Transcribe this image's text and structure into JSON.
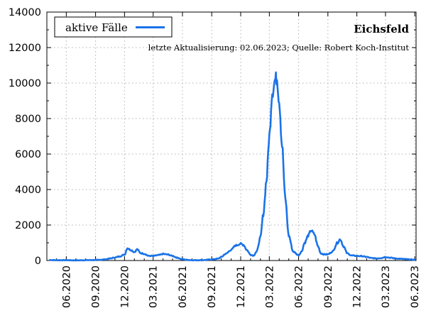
{
  "chart_data": {
    "type": "line",
    "title": "Eichsfeld",
    "subtitle": "letzte Aktualisierung: 02.06.2023; Quelle: Robert Koch-Institut",
    "xlabel": "",
    "ylabel": "",
    "ylim": [
      0,
      14000
    ],
    "xlim": [
      "2020-04-01",
      "2023-06-05"
    ],
    "grid": true,
    "legend_position": "top-left",
    "y_ticks": [
      "0",
      "2000",
      "4000",
      "6000",
      "8000",
      "10000",
      "12000",
      "14000"
    ],
    "x_ticks": [
      {
        "label": "06.2020",
        "date": "2020-06-01"
      },
      {
        "label": "09.2020",
        "date": "2020-09-01"
      },
      {
        "label": "12.2020",
        "date": "2020-12-01"
      },
      {
        "label": "03.2021",
        "date": "2021-03-01"
      },
      {
        "label": "06.2021",
        "date": "2021-06-01"
      },
      {
        "label": "09.2021",
        "date": "2021-09-01"
      },
      {
        "label": "12.2021",
        "date": "2021-12-01"
      },
      {
        "label": "03.2022",
        "date": "2022-03-01"
      },
      {
        "label": "06.2022",
        "date": "2022-06-01"
      },
      {
        "label": "09.2022",
        "date": "2022-09-01"
      },
      {
        "label": "12.2022",
        "date": "2022-12-01"
      },
      {
        "label": "03.2023",
        "date": "2023-03-01"
      },
      {
        "label": "06.2023",
        "date": "2023-06-01"
      }
    ],
    "series": [
      {
        "name": "aktive Fälle",
        "color": "#1a73e8",
        "x": [
          "2020-04-10",
          "2020-05-01",
          "2020-06-01",
          "2020-07-01",
          "2020-08-01",
          "2020-09-01",
          "2020-10-01",
          "2020-10-15",
          "2020-11-01",
          "2020-11-15",
          "2020-12-01",
          "2020-12-10",
          "2020-12-20",
          "2021-01-01",
          "2021-01-10",
          "2021-01-20",
          "2021-02-01",
          "2021-02-15",
          "2021-03-01",
          "2021-03-20",
          "2021-04-01",
          "2021-04-15",
          "2021-05-01",
          "2021-05-15",
          "2021-06-01",
          "2021-06-15",
          "2021-07-01",
          "2021-08-01",
          "2021-09-01",
          "2021-09-20",
          "2021-10-01",
          "2021-10-15",
          "2021-11-01",
          "2021-11-15",
          "2021-12-01",
          "2021-12-10",
          "2021-12-20",
          "2022-01-01",
          "2022-01-10",
          "2022-01-20",
          "2022-02-01",
          "2022-02-10",
          "2022-02-20",
          "2022-03-01",
          "2022-03-10",
          "2022-03-20",
          "2022-03-25",
          "2022-04-01",
          "2022-04-10",
          "2022-04-20",
          "2022-05-01",
          "2022-05-15",
          "2022-06-01",
          "2022-06-10",
          "2022-06-20",
          "2022-07-01",
          "2022-07-10",
          "2022-07-20",
          "2022-08-01",
          "2022-08-10",
          "2022-08-20",
          "2022-09-01",
          "2022-09-15",
          "2022-10-01",
          "2022-10-10",
          "2022-10-20",
          "2022-11-01",
          "2022-11-15",
          "2022-12-01",
          "2022-12-15",
          "2023-01-01",
          "2023-01-15",
          "2023-02-01",
          "2023-02-15",
          "2023-03-01",
          "2023-03-15",
          "2023-04-01",
          "2023-04-15",
          "2023-05-01",
          "2023-05-15",
          "2023-06-01"
        ],
        "values": [
          30,
          20,
          20,
          10,
          20,
          30,
          60,
          110,
          170,
          230,
          330,
          700,
          600,
          480,
          630,
          420,
          380,
          260,
          260,
          310,
          370,
          340,
          260,
          160,
          70,
          40,
          20,
          20,
          60,
          100,
          200,
          380,
          600,
          850,
          940,
          880,
          600,
          330,
          280,
          500,
          1300,
          2600,
          4500,
          7000,
          9500,
          10200,
          10300,
          9000,
          6500,
          3500,
          1400,
          500,
          300,
          500,
          1000,
          1400,
          1700,
          1500,
          800,
          400,
          350,
          350,
          500,
          1000,
          1200,
          800,
          400,
          280,
          260,
          250,
          200,
          140,
          120,
          140,
          200,
          160,
          120,
          100,
          80,
          60,
          40
        ]
      }
    ]
  }
}
